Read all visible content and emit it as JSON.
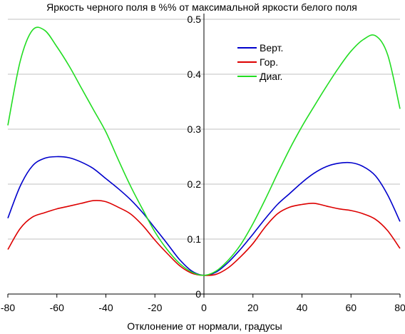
{
  "chart_data": {
    "type": "line",
    "title": "Яркость черного поля в %% от максимальной яркости белого поля",
    "xlabel": "Отклонение от нормали, градусы",
    "ylabel": "",
    "xlim": [
      -80,
      80
    ],
    "ylim": [
      0,
      0.5
    ],
    "x_ticks": [
      "-80",
      "-60",
      "-40",
      "-20",
      "0",
      "20",
      "40",
      "60",
      "80"
    ],
    "y_ticks": [
      "0",
      "0.1",
      "0.2",
      "0.3",
      "0.4",
      "0.5"
    ],
    "grid": "horizontal",
    "legend_position": "top-right",
    "x": [
      -80,
      -75,
      -70,
      -65,
      -60,
      -55,
      -50,
      -45,
      -40,
      -35,
      -30,
      -25,
      -20,
      -15,
      -10,
      -5,
      0,
      5,
      10,
      15,
      20,
      25,
      30,
      35,
      40,
      45,
      50,
      55,
      60,
      65,
      70,
      75,
      80
    ],
    "series": [
      {
        "name": "Верт.",
        "color": "#0000cc",
        "values": [
          0.138,
          0.196,
          0.233,
          0.247,
          0.25,
          0.248,
          0.24,
          0.228,
          0.21,
          0.192,
          0.172,
          0.148,
          0.12,
          0.092,
          0.063,
          0.042,
          0.034,
          0.04,
          0.058,
          0.082,
          0.109,
          0.137,
          0.163,
          0.183,
          0.203,
          0.22,
          0.232,
          0.238,
          0.239,
          0.232,
          0.215,
          0.18,
          0.132
        ]
      },
      {
        "name": "Гор.",
        "color": "#dd0000",
        "values": [
          0.081,
          0.119,
          0.14,
          0.148,
          0.155,
          0.16,
          0.165,
          0.17,
          0.168,
          0.158,
          0.146,
          0.125,
          0.098,
          0.074,
          0.052,
          0.038,
          0.034,
          0.036,
          0.048,
          0.068,
          0.092,
          0.122,
          0.146,
          0.158,
          0.163,
          0.165,
          0.16,
          0.155,
          0.152,
          0.146,
          0.136,
          0.115,
          0.083
        ]
      },
      {
        "name": "Диаг.",
        "color": "#22dd22",
        "values": [
          0.307,
          0.423,
          0.48,
          0.48,
          0.45,
          0.415,
          0.375,
          0.335,
          0.295,
          0.245,
          0.197,
          0.154,
          0.113,
          0.081,
          0.056,
          0.04,
          0.034,
          0.042,
          0.062,
          0.09,
          0.128,
          0.172,
          0.219,
          0.264,
          0.305,
          0.342,
          0.378,
          0.412,
          0.442,
          0.463,
          0.47,
          0.435,
          0.337
        ]
      }
    ]
  }
}
